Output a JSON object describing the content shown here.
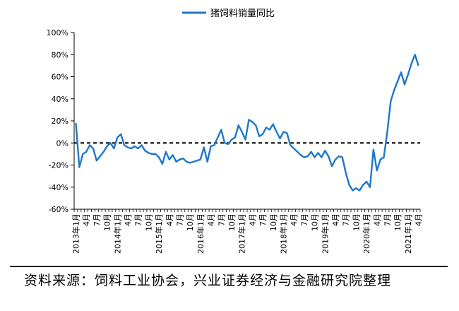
{
  "chart_data": {
    "type": "line",
    "title": "",
    "xlabel": "",
    "ylabel": "",
    "ylim": [
      -60,
      100
    ],
    "yticks": [
      -60,
      -40,
      -20,
      0,
      20,
      40,
      60,
      80,
      100
    ],
    "ytick_format": "percent",
    "grid": false,
    "legend": "top-center",
    "reference_line": {
      "y": 0,
      "style": "dashed",
      "color": "#000000"
    },
    "x_tick_labels": [
      "2013年1月",
      "4月",
      "7月",
      "10月",
      "2014年1月",
      "4月",
      "7月",
      "10月",
      "2015年1月",
      "4月",
      "7月",
      "10月",
      "2016年1月",
      "4月",
      "7月",
      "10月",
      "2017年1月",
      "4月",
      "7月",
      "10月",
      "2018年1月",
      "4月",
      "7月",
      "10月",
      "2019年1月",
      "4月",
      "7月",
      "10月",
      "2020年1月",
      "4月",
      "7月",
      "10月",
      "2021年1月",
      "4月"
    ],
    "series": [
      {
        "name": "猪饲料销量同比",
        "color": "#1f77c8",
        "x": [
          "2013-01",
          "2013-02",
          "2013-03",
          "2013-04",
          "2013-05",
          "2013-06",
          "2013-07",
          "2013-08",
          "2013-09",
          "2013-10",
          "2013-11",
          "2013-12",
          "2014-01",
          "2014-02",
          "2014-03",
          "2014-04",
          "2014-05",
          "2014-06",
          "2014-07",
          "2014-08",
          "2014-09",
          "2014-10",
          "2014-11",
          "2014-12",
          "2015-01",
          "2015-02",
          "2015-03",
          "2015-04",
          "2015-05",
          "2015-06",
          "2015-07",
          "2015-08",
          "2015-09",
          "2015-10",
          "2015-11",
          "2015-12",
          "2016-01",
          "2016-02",
          "2016-03",
          "2016-04",
          "2016-05",
          "2016-06",
          "2016-07",
          "2016-08",
          "2016-09",
          "2016-10",
          "2016-11",
          "2016-12",
          "2017-01",
          "2017-02",
          "2017-03",
          "2017-04",
          "2017-05",
          "2017-06",
          "2017-07",
          "2017-08",
          "2017-09",
          "2017-10",
          "2017-11",
          "2017-12",
          "2018-01",
          "2018-02",
          "2018-03",
          "2018-04",
          "2018-05",
          "2018-06",
          "2018-07",
          "2018-08",
          "2018-09",
          "2018-10",
          "2018-11",
          "2018-12",
          "2019-01",
          "2019-02",
          "2019-03",
          "2019-04",
          "2019-05",
          "2019-06",
          "2019-07",
          "2019-08",
          "2019-09",
          "2019-10",
          "2019-11",
          "2019-12",
          "2020-01",
          "2020-02",
          "2020-03",
          "2020-04",
          "2020-05",
          "2020-06",
          "2020-07",
          "2020-08",
          "2020-09",
          "2020-10",
          "2020-11",
          "2020-12",
          "2021-01",
          "2021-02",
          "2021-03",
          "2021-04"
        ],
        "values": [
          18,
          -22,
          -10,
          -8,
          -2,
          -5,
          -16,
          -12,
          -8,
          -3,
          0,
          -5,
          5,
          8,
          -2,
          -4,
          -5,
          -3,
          -5,
          -2,
          -7,
          -9,
          -10,
          -10,
          -13,
          -19,
          -8,
          -15,
          -11,
          -17,
          -15,
          -14,
          -17,
          -18,
          -17,
          -16,
          -15,
          -4,
          -17,
          -3,
          -2,
          5,
          12,
          0,
          -1,
          3,
          5,
          16,
          10,
          3,
          21,
          19,
          16,
          6,
          8,
          14,
          12,
          17,
          10,
          4,
          10,
          9,
          -2,
          -5,
          -8,
          -11,
          -13,
          -12,
          -8,
          -13,
          -9,
          -13,
          -7,
          -12,
          -21,
          -15,
          -12,
          -13,
          -27,
          -38,
          -43,
          -41,
          -43,
          -38,
          -35,
          -40,
          -6,
          -25,
          -15,
          -13,
          10,
          38,
          48,
          56,
          64,
          53,
          62,
          72,
          80,
          70
        ]
      }
    ]
  },
  "footer": {
    "source": "资料来源：饲料工业协会，兴业证券经济与金融研究院整理"
  }
}
